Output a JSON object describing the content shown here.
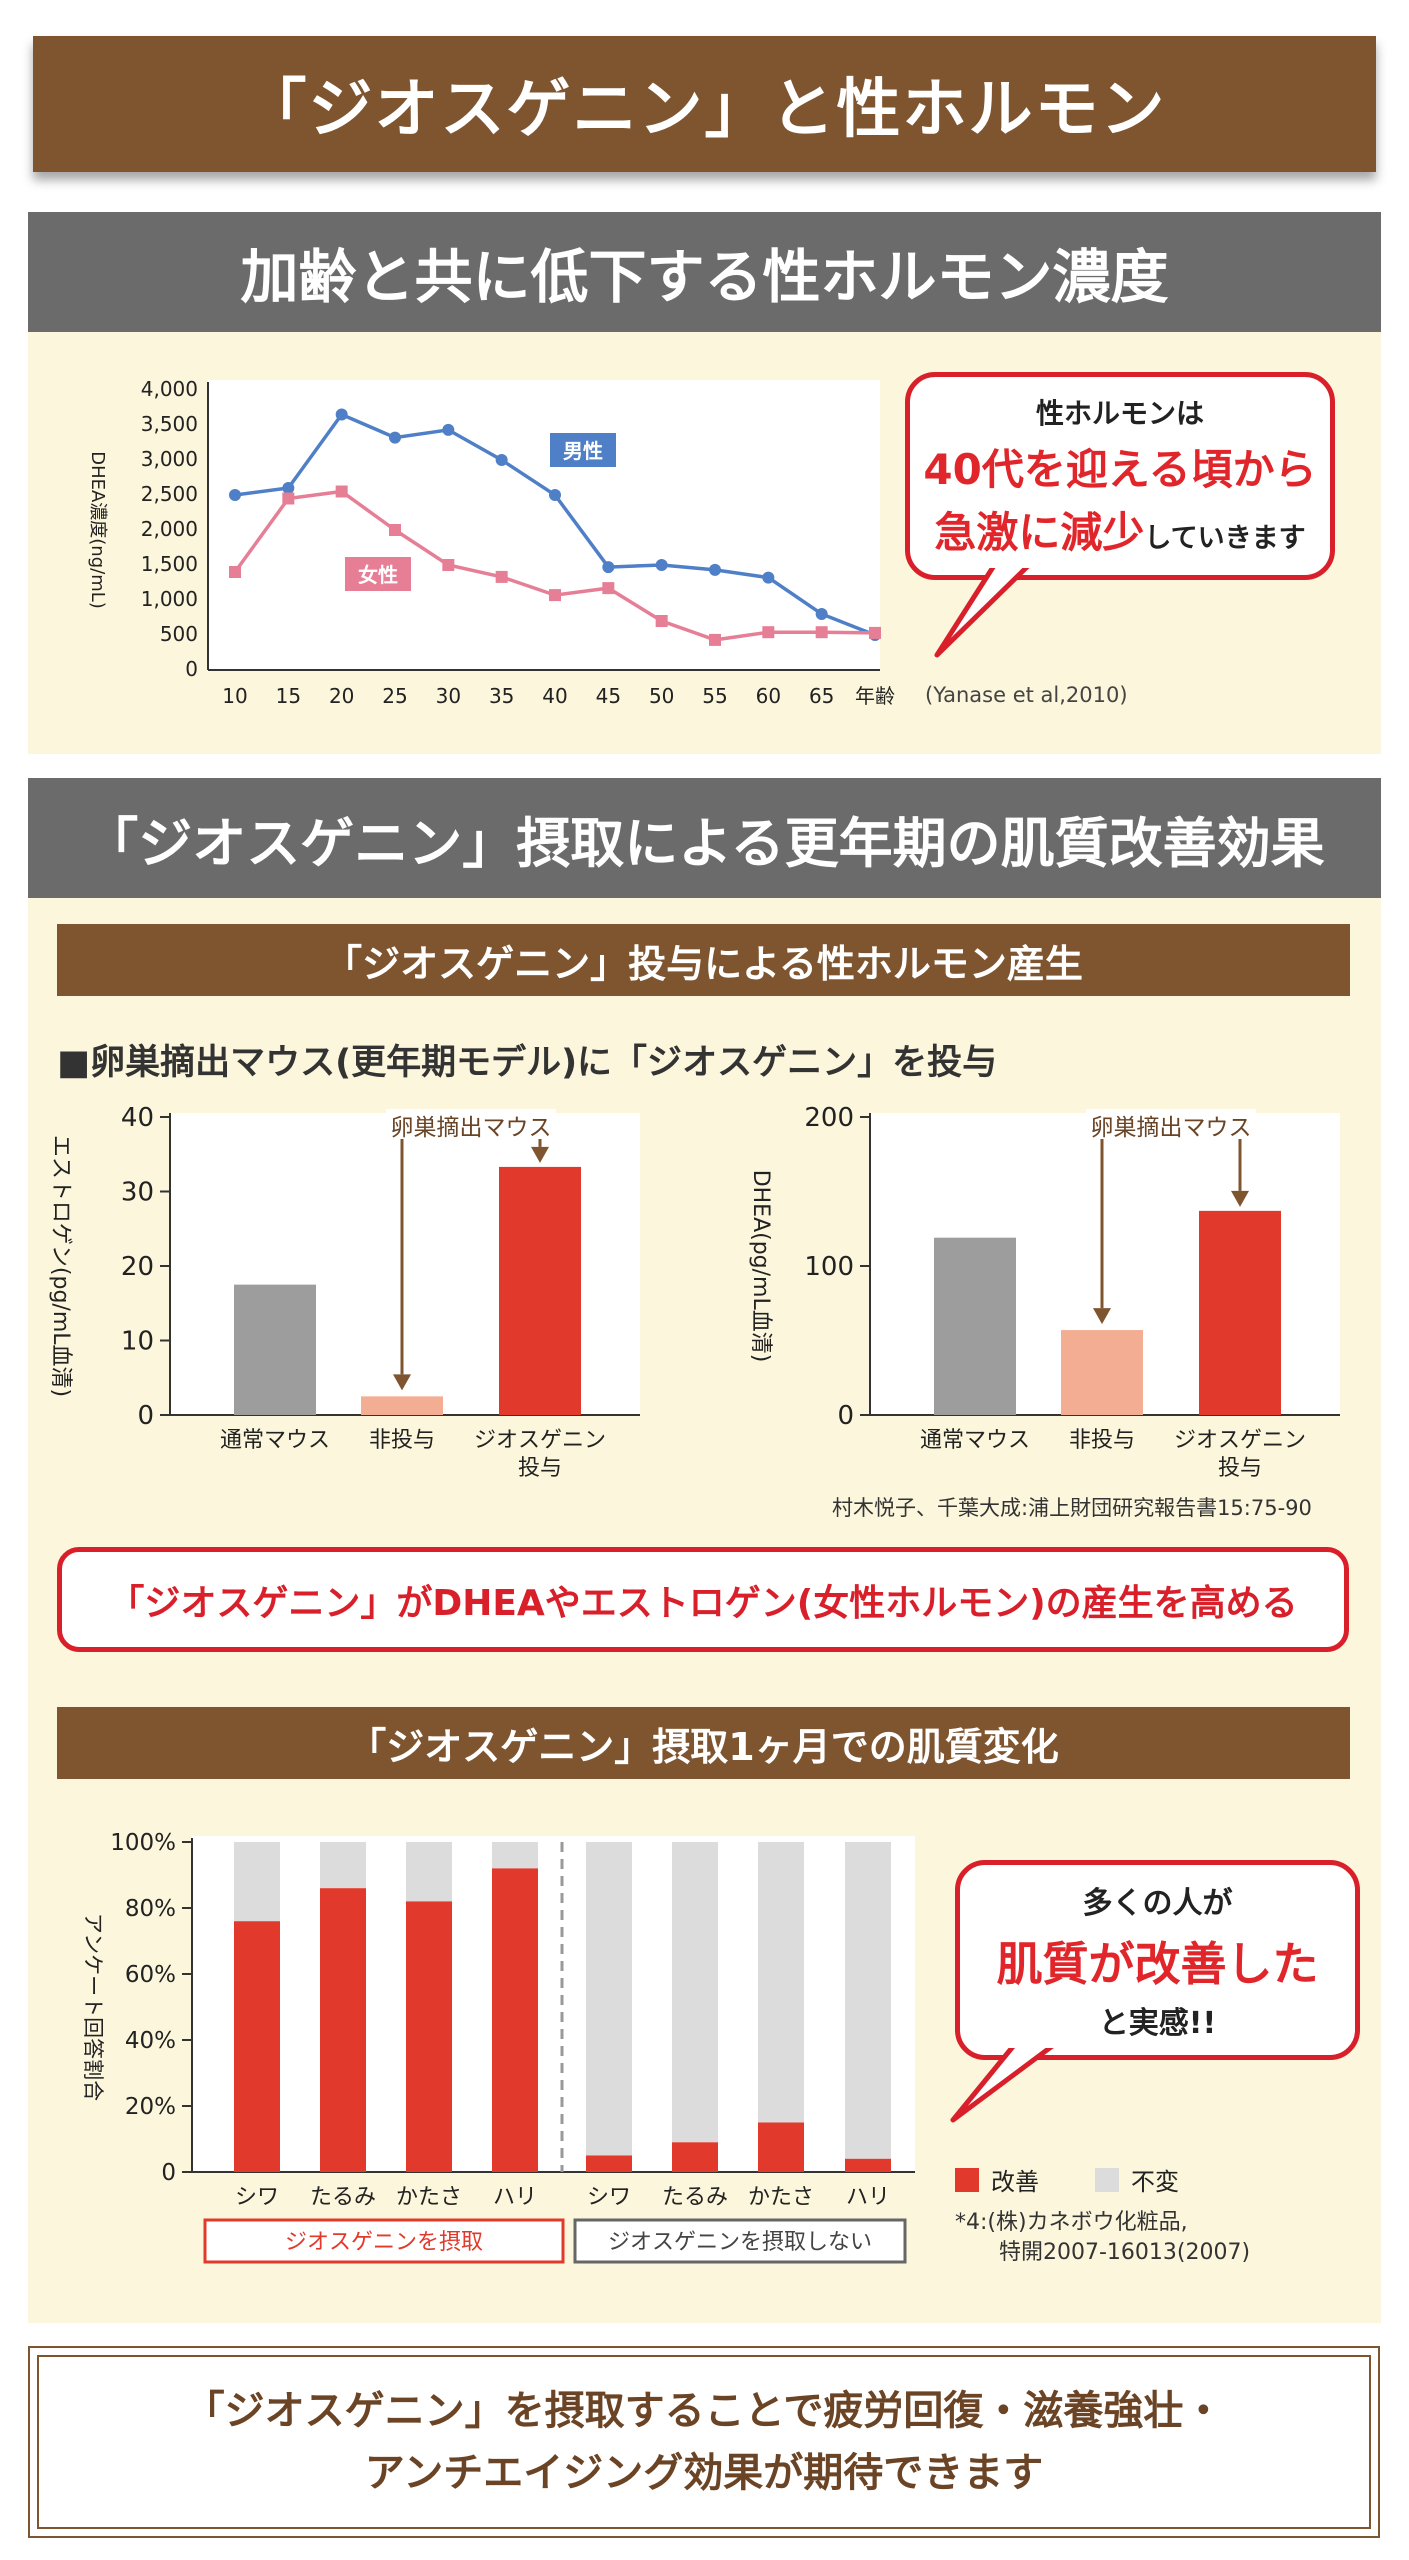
{
  "main_title": "「ジオスゲニン」と性ホルモン",
  "section1": {
    "title": "加齢と共に低下する性ホルモン濃度",
    "callout_line1": "性ホルモンは",
    "callout_line2": "40代を迎える頃から",
    "callout_line3a": "急激に減少",
    "callout_line3b": "していきます",
    "citation": "(Yanase et al,2010)"
  },
  "section2": {
    "title": "「ジオスゲニン」摂取による更年期の肌質改善効果",
    "sub1_title": "「ジオスゲニン」投与による性ホルモン産生",
    "heading": "■卵巣摘出マウス(更年期モデル)に「ジオスゲニン」を投与",
    "citation": "村木悦子、千葉大成:浦上財団研究報告書15:75-90",
    "conclusion": "「ジオスゲニン」がDHEAやエストロゲン(女性ホルモン)の産生を高める",
    "sub2_title": "「ジオスゲニン」摂取1ヶ月での肌質変化",
    "callout_line1": "多くの人が",
    "callout_line2": "肌質が改善した",
    "callout_line3": "と実感!!",
    "note_line1": "*4:(株)カネボウ化粧品,",
    "note_line2": "特開2007-16013(2007)"
  },
  "footer": {
    "line1": "「ジオスゲニン」を摂取することで疲労回復・滋養強壮・",
    "line2": "アンチエイジング効果が期待できます"
  },
  "colors": {
    "brown": "#7f5530",
    "gray": "#6b6b6b",
    "red": "#e1392b",
    "male": "#4f7fc6",
    "female": "#e67f96"
  },
  "chart_data": [
    {
      "type": "line",
      "ylabel": "DHEA濃度(ng/mL)",
      "ylim": [
        0,
        4000
      ],
      "yticks": [
        "4,000",
        "3,500",
        "3,000",
        "2,500",
        "2,000",
        "1,500",
        "1,000",
        "500",
        "0"
      ],
      "categories": [
        "10",
        "15",
        "20",
        "25",
        "30",
        "35",
        "40",
        "45",
        "50",
        "55",
        "60",
        "65",
        "年齢"
      ],
      "series": [
        {
          "name": "男性",
          "values": [
            2500,
            2600,
            3650,
            3320,
            3430,
            3000,
            2500,
            1470,
            1500,
            1430,
            1320,
            800,
            500
          ]
        },
        {
          "name": "女性",
          "values": [
            1400,
            2450,
            2550,
            2000,
            1500,
            1330,
            1070,
            1170,
            700,
            430,
            540,
            540,
            530
          ]
        }
      ]
    },
    {
      "type": "bar",
      "ylabel": "エストロゲン(pg/mL血清)",
      "ylim": [
        0,
        40
      ],
      "yticks": [
        "40",
        "30",
        "20",
        "10",
        "0"
      ],
      "categories": [
        "通常マウス",
        "非投与",
        "ジオスゲニン|投与"
      ],
      "values": [
        17.5,
        2.5,
        33.3
      ],
      "colors": [
        "#9d9d9d",
        "#f2ad93",
        "#e1392b"
      ],
      "annotation": "卵巣摘出マウス"
    },
    {
      "type": "bar",
      "ylabel": "DHEA(pg/mL血清)",
      "ylim": [
        0,
        200
      ],
      "yticks": [
        "200",
        "100",
        "0"
      ],
      "categories": [
        "通常マウス",
        "非投与",
        "ジオスゲニン|投与"
      ],
      "values": [
        119,
        57,
        137
      ],
      "colors": [
        "#9d9d9d",
        "#f2ad93",
        "#e1392b"
      ],
      "annotation": "卵巣摘出マウス"
    },
    {
      "type": "bar",
      "stacked": true,
      "ylabel": "アンケート回答割合",
      "ylim": [
        0,
        100
      ],
      "yticks": [
        "100%",
        "80%",
        "60%",
        "40%",
        "20%",
        "0"
      ],
      "categories": [
        "シワ",
        "たるみ",
        "かたさ",
        "ハリ",
        "シワ",
        "たるみ",
        "かたさ",
        "ハリ"
      ],
      "series": [
        {
          "name": "改善",
          "values": [
            76,
            86,
            82,
            92,
            5,
            9,
            15,
            4
          ]
        },
        {
          "name": "不変",
          "values": [
            24,
            14,
            18,
            8,
            95,
            91,
            85,
            96
          ]
        }
      ],
      "group_labels": [
        "ジオスゲニンを摂取",
        "ジオスゲニンを摂取しない"
      ]
    }
  ]
}
